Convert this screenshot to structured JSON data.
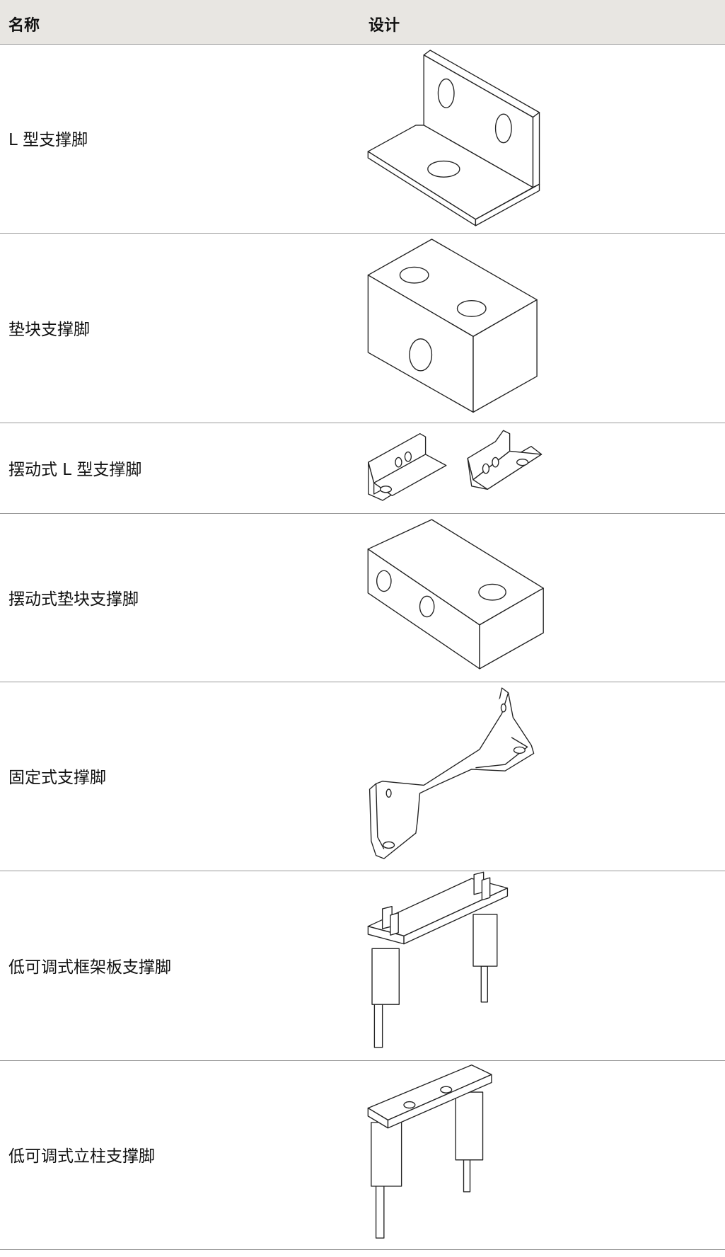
{
  "table": {
    "columns": [
      "名称",
      "设计"
    ],
    "rows": [
      {
        "name": "L 型支撑脚"
      },
      {
        "name": "垫块支撑脚"
      },
      {
        "name": "摆动式 L 型支撑脚"
      },
      {
        "name": "摆动式垫块支撑脚"
      },
      {
        "name": "固定式支撑脚"
      },
      {
        "name": "低可调式框架板支撑脚"
      },
      {
        "name": "低可调式立柱支撑脚"
      }
    ]
  }
}
